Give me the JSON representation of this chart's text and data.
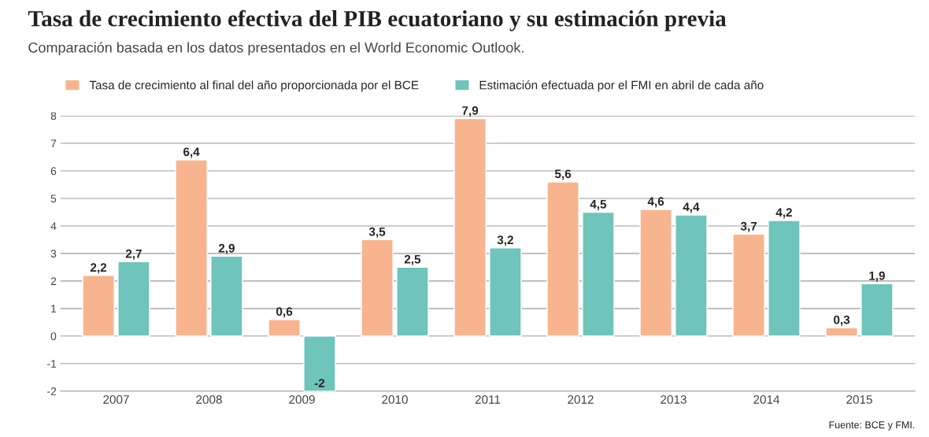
{
  "chart_data": {
    "type": "bar",
    "title": "Tasa de crecimiento efectiva del PIB ecuatoriano y su estimación previa",
    "subtitle": "Comparación basada en los datos presentados en el World Economic Outlook.",
    "categories": [
      "2007",
      "2008",
      "2009",
      "2010",
      "2011",
      "2012",
      "2013",
      "2014",
      "2015"
    ],
    "series": [
      {
        "name": "Tasa de crecimiento al final del año proporcionada por el BCE",
        "color": "#f8b48e",
        "values": [
          2.2,
          6.4,
          0.6,
          3.5,
          7.9,
          5.6,
          4.6,
          3.7,
          0.3
        ],
        "value_labels": [
          "2,2",
          "6,4",
          "0,6",
          "3,5",
          "7,9",
          "5,6",
          "4,6",
          "3,7",
          "0,3"
        ]
      },
      {
        "name": "Estimación efectuada por el FMI en abril de cada año",
        "color": "#6fc4bc",
        "values": [
          2.7,
          2.9,
          -2,
          2.5,
          3.2,
          4.5,
          4.4,
          4.2,
          1.9
        ],
        "value_labels": [
          "2,7",
          "2,9",
          "-2",
          "2,5",
          "3,2",
          "4,5",
          "4,4",
          "4,2",
          "1,9"
        ]
      }
    ],
    "ylim": [
      -2,
      8
    ],
    "yticks": [
      {
        "value": -2,
        "label": "-2"
      },
      {
        "value": -1,
        "label": "-1"
      },
      0,
      1,
      2,
      3,
      4,
      5,
      6,
      7,
      8
    ],
    "grid": "y",
    "legend": "top left",
    "annotations": [
      "Fuente: BCE y FMI."
    ]
  }
}
